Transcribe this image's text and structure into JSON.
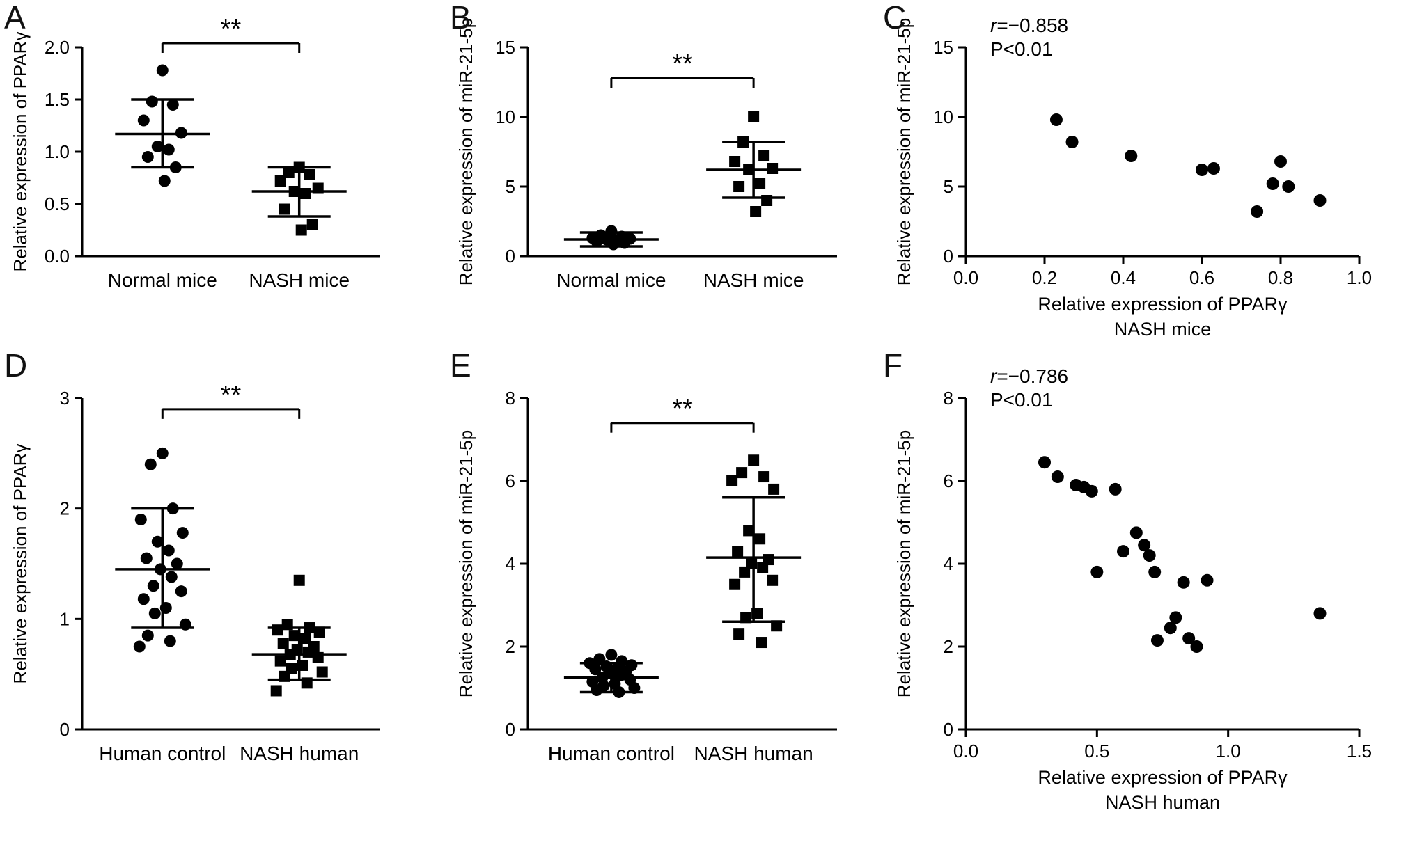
{
  "colors": {
    "foreground": "#000000",
    "background": "#ffffff"
  },
  "chart_data": [
    {
      "type": "scatter",
      "subtype": "column_scatter",
      "panel_label": "A",
      "ylabel": "Relative expression of PPARγ",
      "ylim": [
        0,
        2
      ],
      "yticks": [
        0,
        0.5,
        1,
        1.5,
        2
      ],
      "ytick_labels": [
        "0.0",
        "0.5",
        "1.0",
        "1.5",
        "2.0"
      ],
      "significance": "**",
      "sig_y": 2.04,
      "groups": [
        {
          "label": "Normal mice",
          "marker": "circle",
          "mean": 1.17,
          "sd_low": 0.85,
          "sd_high": 1.5,
          "values": [
            1.78,
            1.48,
            1.45,
            1.3,
            1.18,
            1.05,
            1.02,
            0.95,
            0.85,
            0.72
          ]
        },
        {
          "label": "NASH mice",
          "marker": "square",
          "mean": 0.62,
          "sd_low": 0.38,
          "sd_high": 0.85,
          "values": [
            0.85,
            0.8,
            0.78,
            0.72,
            0.65,
            0.62,
            0.6,
            0.45,
            0.3,
            0.25
          ]
        }
      ]
    },
    {
      "type": "scatter",
      "subtype": "column_scatter",
      "panel_label": "B",
      "ylabel": "Relative expression of miR-21-5p",
      "ylim": [
        0,
        15
      ],
      "yticks": [
        0,
        5,
        10,
        15
      ],
      "ytick_labels": [
        "0",
        "5",
        "10",
        "15"
      ],
      "significance": "**",
      "sig_y": 12.8,
      "groups": [
        {
          "label": "Normal mice",
          "marker": "circle",
          "mean": 1.2,
          "sd_low": 0.7,
          "sd_high": 1.7,
          "values": [
            1.8,
            1.5,
            1.4,
            1.3,
            1.25,
            1.2,
            1.15,
            1.05,
            0.95,
            0.85
          ]
        },
        {
          "label": "NASH mice",
          "marker": "square",
          "mean": 6.2,
          "sd_low": 4.2,
          "sd_high": 8.2,
          "values": [
            10,
            8.2,
            7.2,
            6.8,
            6.3,
            6.2,
            5.2,
            5,
            4,
            3.2
          ]
        }
      ]
    },
    {
      "type": "scatter",
      "subtype": "xy_scatter",
      "panel_label": "C",
      "annotation": {
        "r": "r=−0.858",
        "p": "P<0.01"
      },
      "xlabel": "Relative expression of PPARγ",
      "xlabel2": "NASH mice",
      "xlim": [
        0,
        1
      ],
      "xticks": [
        0,
        0.2,
        0.4,
        0.6,
        0.8,
        1
      ],
      "xtick_labels": [
        "0.0",
        "0.2",
        "0.4",
        "0.6",
        "0.8",
        "1.0"
      ],
      "ylabel": "Relative expression of miR-21-5p",
      "ylim": [
        0,
        15
      ],
      "yticks": [
        0,
        5,
        10,
        15
      ],
      "ytick_labels": [
        "0",
        "5",
        "10",
        "15"
      ],
      "points": [
        [
          0.23,
          9.8
        ],
        [
          0.27,
          8.2
        ],
        [
          0.42,
          7.2
        ],
        [
          0.6,
          6.2
        ],
        [
          0.63,
          6.3
        ],
        [
          0.74,
          3.2
        ],
        [
          0.78,
          5.2
        ],
        [
          0.8,
          6.8
        ],
        [
          0.82,
          5.0
        ],
        [
          0.9,
          4.0
        ]
      ]
    },
    {
      "type": "scatter",
      "subtype": "column_scatter",
      "panel_label": "D",
      "ylabel": "Relative expression of PPARγ",
      "ylim": [
        0,
        3
      ],
      "yticks": [
        0,
        1,
        2,
        3
      ],
      "ytick_labels": [
        "0",
        "1",
        "2",
        "3"
      ],
      "significance": "**",
      "sig_y": 2.9,
      "groups": [
        {
          "label": "Human control",
          "marker": "circle",
          "mean": 1.45,
          "sd_low": 0.92,
          "sd_high": 2.0,
          "values": [
            2.5,
            2.4,
            2.0,
            1.9,
            1.78,
            1.7,
            1.62,
            1.55,
            1.5,
            1.45,
            1.38,
            1.3,
            1.25,
            1.18,
            1.1,
            1.05,
            0.95,
            0.85,
            0.8,
            0.75
          ]
        },
        {
          "label": "NASH human",
          "marker": "square",
          "mean": 0.68,
          "sd_low": 0.45,
          "sd_high": 0.92,
          "values": [
            1.35,
            0.95,
            0.92,
            0.9,
            0.88,
            0.85,
            0.82,
            0.78,
            0.75,
            0.72,
            0.7,
            0.68,
            0.65,
            0.62,
            0.58,
            0.55,
            0.52,
            0.48,
            0.42,
            0.35
          ]
        }
      ]
    },
    {
      "type": "scatter",
      "subtype": "column_scatter",
      "panel_label": "E",
      "ylabel": "Relative expression of miR-21-5p",
      "ylim": [
        0,
        8
      ],
      "yticks": [
        0,
        2,
        4,
        6,
        8
      ],
      "ytick_labels": [
        "0",
        "2",
        "4",
        "6",
        "8"
      ],
      "significance": "**",
      "sig_y": 7.4,
      "groups": [
        {
          "label": "Human control",
          "marker": "circle",
          "mean": 1.25,
          "sd_low": 0.9,
          "sd_high": 1.6,
          "values": [
            1.8,
            1.7,
            1.65,
            1.6,
            1.55,
            1.52,
            1.48,
            1.45,
            1.4,
            1.35,
            1.3,
            1.25,
            1.2,
            1.15,
            1.1,
            1.05,
            1.0,
            0.95,
            0.9
          ]
        },
        {
          "label": "NASH human",
          "marker": "square",
          "mean": 4.15,
          "sd_low": 2.6,
          "sd_high": 5.6,
          "values": [
            6.5,
            6.2,
            6.1,
            6.0,
            5.8,
            4.8,
            4.6,
            4.3,
            4.1,
            4.0,
            3.9,
            3.8,
            3.6,
            3.5,
            2.8,
            2.7,
            2.5,
            2.3,
            2.1
          ]
        }
      ]
    },
    {
      "type": "scatter",
      "subtype": "xy_scatter",
      "panel_label": "F",
      "annotation": {
        "r": "r=−0.786",
        "p": "P<0.01"
      },
      "xlabel": "Relative expression of PPARγ",
      "xlabel2": "NASH human",
      "xlim": [
        0,
        1.5
      ],
      "xticks": [
        0,
        0.5,
        1,
        1.5
      ],
      "xtick_labels": [
        "0.0",
        "0.5",
        "1.0",
        "1.5"
      ],
      "ylabel": "Relative expression of miR-21-5p",
      "ylim": [
        0,
        8
      ],
      "yticks": [
        0,
        2,
        4,
        6,
        8
      ],
      "ytick_labels": [
        "0",
        "2",
        "4",
        "6",
        "8"
      ],
      "points": [
        [
          0.3,
          6.45
        ],
        [
          0.35,
          6.1
        ],
        [
          0.42,
          5.9
        ],
        [
          0.45,
          5.85
        ],
        [
          0.48,
          5.75
        ],
        [
          0.5,
          3.8
        ],
        [
          0.57,
          5.8
        ],
        [
          0.6,
          4.3
        ],
        [
          0.65,
          4.75
        ],
        [
          0.68,
          4.45
        ],
        [
          0.7,
          4.2
        ],
        [
          0.72,
          3.8
        ],
        [
          0.73,
          2.15
        ],
        [
          0.78,
          2.45
        ],
        [
          0.8,
          2.7
        ],
        [
          0.83,
          3.55
        ],
        [
          0.85,
          2.2
        ],
        [
          0.88,
          2.0
        ],
        [
          0.92,
          3.6
        ],
        [
          1.35,
          2.8
        ]
      ]
    }
  ]
}
